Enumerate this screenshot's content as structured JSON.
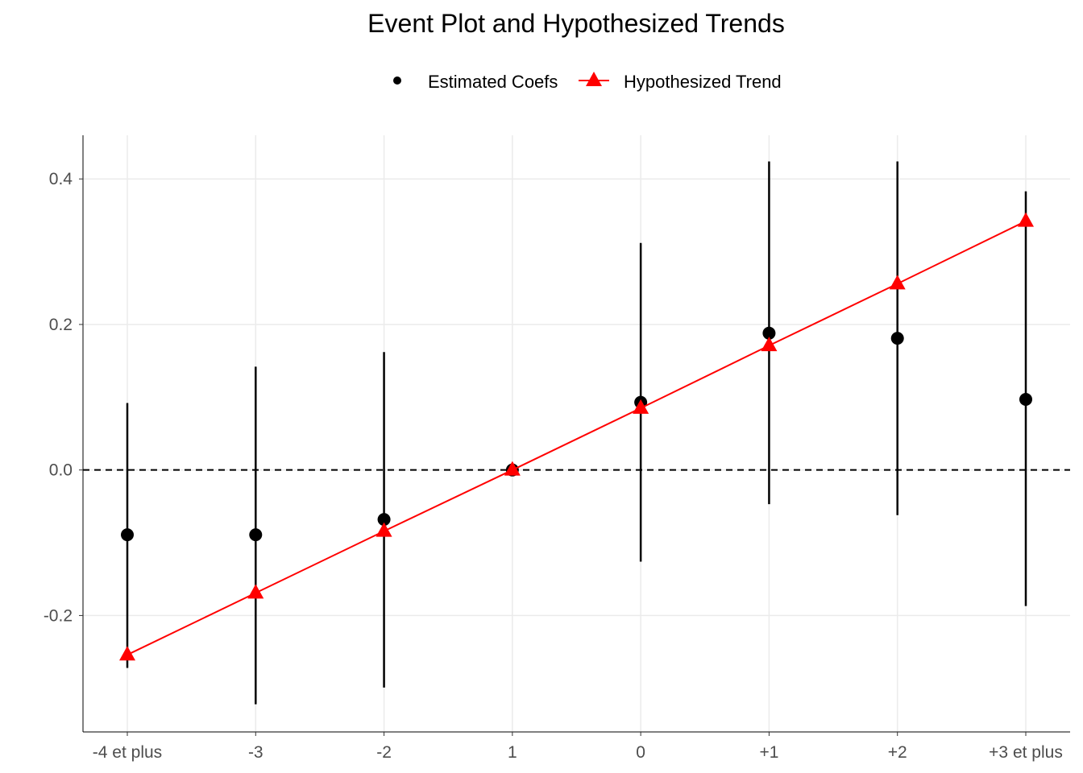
{
  "chart_data": {
    "type": "scatter",
    "title": "Event Plot and Hypothesized Trends",
    "xlabel": "",
    "ylabel": "",
    "categories": [
      "-4 et plus",
      "-3",
      "-2",
      "1",
      "0",
      "+1",
      "+2",
      "+3 et plus"
    ],
    "ylim": [
      -0.36,
      0.46
    ],
    "yticks": [
      -0.2,
      0.0,
      0.2,
      0.4
    ],
    "ytick_labels": [
      "-0.2",
      "0.0",
      "0.2",
      "0.4"
    ],
    "grid": true,
    "reference_line": {
      "y": 0,
      "style": "dashed"
    },
    "legend": {
      "position": "top"
    },
    "series": [
      {
        "name": "Estimated Coefs",
        "kind": "point-with-errorbar",
        "color": "#000000",
        "values": [
          -0.089,
          -0.089,
          -0.068,
          0.0,
          0.093,
          0.188,
          0.181,
          0.097
        ],
        "lower": [
          -0.272,
          -0.322,
          -0.299,
          0.0,
          -0.126,
          -0.047,
          -0.062,
          -0.187
        ],
        "upper": [
          0.092,
          0.142,
          0.162,
          0.0,
          0.312,
          0.424,
          0.424,
          0.383
        ]
      },
      {
        "name": "Hypothesized Trend",
        "kind": "line-with-triangles",
        "color": "#ff0000",
        "values": [
          -0.254,
          -0.169,
          -0.084,
          0.0,
          0.085,
          0.171,
          0.256,
          0.342
        ]
      }
    ]
  }
}
